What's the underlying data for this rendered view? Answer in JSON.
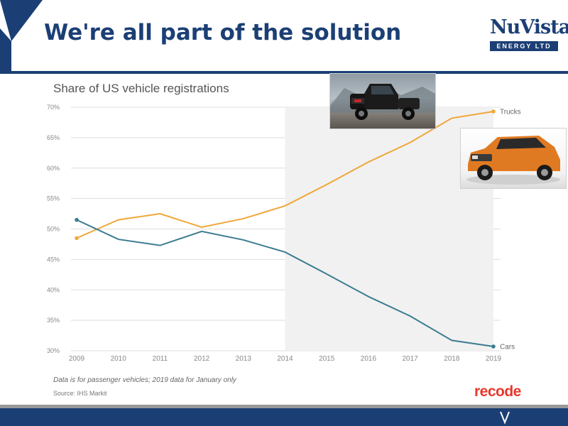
{
  "slide": {
    "title": "We're all part of the solution",
    "logo": {
      "main": "NuVista",
      "sub": "ENERGY LTD"
    },
    "brand_mark": "recode",
    "colors": {
      "primary": "#1b3f75",
      "accent_red": "#e8362b"
    }
  },
  "chart_data": {
    "type": "line",
    "title": "Share of US vehicle registrations",
    "x": [
      "2009",
      "2010",
      "2011",
      "2012",
      "2013",
      "2014",
      "2015",
      "2016",
      "2017",
      "2018",
      "2019"
    ],
    "yticks": [
      "30%",
      "35%",
      "40%",
      "45%",
      "50%",
      "55%",
      "60%",
      "65%",
      "70%"
    ],
    "ylim": [
      30,
      70
    ],
    "grid": true,
    "series": [
      {
        "name": "Trucks",
        "color": "#f0a73a",
        "values": [
          48.5,
          51.5,
          52.5,
          50.3,
          51.7,
          53.8,
          57.3,
          61.0,
          64.2,
          68.2,
          69.3
        ]
      },
      {
        "name": "Cars",
        "color": "#3c7c90",
        "values": [
          51.5,
          48.3,
          47.3,
          49.6,
          48.2,
          46.2,
          42.6,
          38.9,
          35.7,
          31.7,
          30.7
        ]
      }
    ],
    "footnote": "Data is for passenger vehicles; 2019 data for January only",
    "source": "Source: IHS Markit"
  },
  "images": {
    "truck": "pickup-truck-photo",
    "suv": "orange-suv-photo"
  }
}
